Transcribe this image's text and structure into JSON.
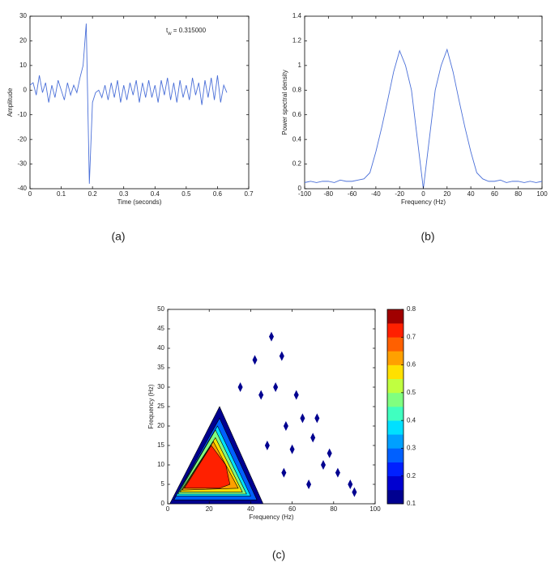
{
  "chart_data": [
    {
      "type": "line",
      "caption": "(a)",
      "x_label": "Time (seconds)",
      "y_label": "Amplitude",
      "annotation": {
        "base": "t",
        "sub": "w",
        "text": " = 0.315000"
      },
      "xlim": [
        0,
        0.7
      ],
      "xticks": [
        0,
        0.1,
        0.2,
        0.3,
        0.4,
        0.5,
        0.6,
        0.7
      ],
      "ylim": [
        -40,
        30
      ],
      "yticks": [
        -40,
        -30,
        -20,
        -10,
        0,
        10,
        20,
        30
      ],
      "color": "#4a6fd8",
      "x": [
        0,
        0.01,
        0.02,
        0.03,
        0.04,
        0.05,
        0.06,
        0.07,
        0.08,
        0.09,
        0.1,
        0.11,
        0.12,
        0.13,
        0.14,
        0.15,
        0.16,
        0.17,
        0.18,
        0.19,
        0.2,
        0.21,
        0.22,
        0.23,
        0.24,
        0.25,
        0.26,
        0.27,
        0.28,
        0.29,
        0.3,
        0.31,
        0.32,
        0.33,
        0.34,
        0.35,
        0.36,
        0.37,
        0.38,
        0.39,
        0.4,
        0.41,
        0.42,
        0.43,
        0.44,
        0.45,
        0.46,
        0.47,
        0.48,
        0.49,
        0.5,
        0.51,
        0.52,
        0.53,
        0.54,
        0.55,
        0.56,
        0.57,
        0.58,
        0.59,
        0.6,
        0.61,
        0.62,
        0.63
      ],
      "values": [
        2,
        3,
        -2,
        6,
        -1,
        3,
        -5,
        2,
        -3,
        4,
        0,
        -4,
        3,
        -2,
        2,
        -1,
        5,
        10,
        27,
        -38,
        -5,
        -1,
        0,
        -3,
        2,
        -4,
        3,
        -3,
        4,
        -5,
        2,
        -4,
        3,
        -2,
        4,
        -5,
        3,
        -3,
        4,
        -3,
        2,
        -5,
        4,
        -2,
        5,
        -4,
        3,
        -5,
        4,
        -3,
        2,
        -4,
        5,
        -2,
        3,
        -6,
        4,
        -3,
        5,
        -4,
        6,
        -5,
        2,
        -1
      ]
    },
    {
      "type": "line",
      "caption": "(b)",
      "x_label": "Frequency (Hz)",
      "y_label": "Power spectral density",
      "xlim": [
        -100,
        100
      ],
      "xticks": [
        -100,
        -80,
        -60,
        -40,
        -20,
        0,
        20,
        40,
        60,
        80,
        100
      ],
      "ylim": [
        0,
        1.4
      ],
      "yticks": [
        0,
        0.2,
        0.4,
        0.6,
        0.8,
        1,
        1.2,
        1.4
      ],
      "color": "#4a6fd8",
      "x": [
        -100,
        -95,
        -90,
        -85,
        -80,
        -75,
        -70,
        -65,
        -60,
        -55,
        -50,
        -45,
        -40,
        -35,
        -30,
        -25,
        -20,
        -15,
        -10,
        -5,
        0,
        5,
        10,
        15,
        20,
        25,
        30,
        35,
        40,
        45,
        50,
        55,
        60,
        65,
        70,
        75,
        80,
        85,
        90,
        95,
        100
      ],
      "values": [
        0.05,
        0.06,
        0.05,
        0.06,
        0.06,
        0.05,
        0.07,
        0.06,
        0.06,
        0.07,
        0.08,
        0.13,
        0.3,
        0.5,
        0.72,
        0.95,
        1.12,
        1.0,
        0.8,
        0.4,
        0.0,
        0.4,
        0.8,
        1.0,
        1.13,
        0.95,
        0.72,
        0.5,
        0.3,
        0.13,
        0.08,
        0.06,
        0.06,
        0.07,
        0.05,
        0.06,
        0.06,
        0.05,
        0.06,
        0.05,
        0.06
      ]
    },
    {
      "type": "contour",
      "caption": "(c)",
      "x_label": "Frequency (Hz)",
      "y_label": "Frequency (Hz)",
      "xlim": [
        0,
        100
      ],
      "xticks": [
        0,
        20,
        40,
        60,
        80,
        100
      ],
      "ylim": [
        0,
        50
      ],
      "yticks": [
        0,
        5,
        10,
        15,
        20,
        25,
        30,
        35,
        40,
        45,
        50
      ],
      "regions": [
        {
          "level": 0.1,
          "color": "#000090",
          "x": [
            1,
            25,
            46
          ],
          "y": [
            0,
            25,
            0
          ]
        },
        {
          "level": 0.2,
          "color": "#0060ff",
          "x": [
            3,
            25,
            43
          ],
          "y": [
            1,
            22,
            1
          ]
        },
        {
          "level": 0.3,
          "color": "#00e0ff",
          "x": [
            4,
            24,
            40
          ],
          "y": [
            2,
            20,
            2
          ]
        },
        {
          "level": 0.4,
          "color": "#80ff80",
          "x": [
            5,
            23,
            38
          ],
          "y": [
            2.5,
            19,
            2.5
          ]
        },
        {
          "level": 0.5,
          "color": "#ffe000",
          "x": [
            6,
            23,
            36
          ],
          "y": [
            3,
            17,
            3
          ]
        },
        {
          "level": 0.6,
          "color": "#ffa000",
          "x": [
            7,
            22,
            34
          ],
          "y": [
            3.5,
            16,
            4
          ]
        },
        {
          "level": 0.7,
          "color": "#ff2000",
          "x": [
            8,
            21,
            28,
            30,
            25
          ],
          "y": [
            4,
            15,
            10,
            5,
            4
          ]
        }
      ],
      "spots": {
        "level": 0.1,
        "color": "#000090",
        "x": [
          50,
          52,
          48,
          55,
          62,
          60,
          70,
          68,
          75,
          82,
          88,
          90,
          45,
          35,
          42,
          57,
          65,
          78,
          72,
          56
        ],
        "y": [
          43,
          30,
          15,
          38,
          28,
          14,
          17,
          5,
          10,
          8,
          5,
          3,
          28,
          30,
          37,
          20,
          22,
          13,
          22,
          8
        ]
      },
      "colorbar": {
        "lim": [
          0.1,
          0.8
        ],
        "ticks": [
          0.1,
          0.2,
          0.3,
          0.4,
          0.5,
          0.6,
          0.7,
          0.8
        ],
        "colors": [
          "#000090",
          "#0000d0",
          "#0020ff",
          "#0060ff",
          "#00a0ff",
          "#00e0ff",
          "#40ffc0",
          "#80ff80",
          "#c0ff40",
          "#ffe000",
          "#ffa000",
          "#ff6000",
          "#ff2000",
          "#a00000"
        ]
      }
    }
  ]
}
